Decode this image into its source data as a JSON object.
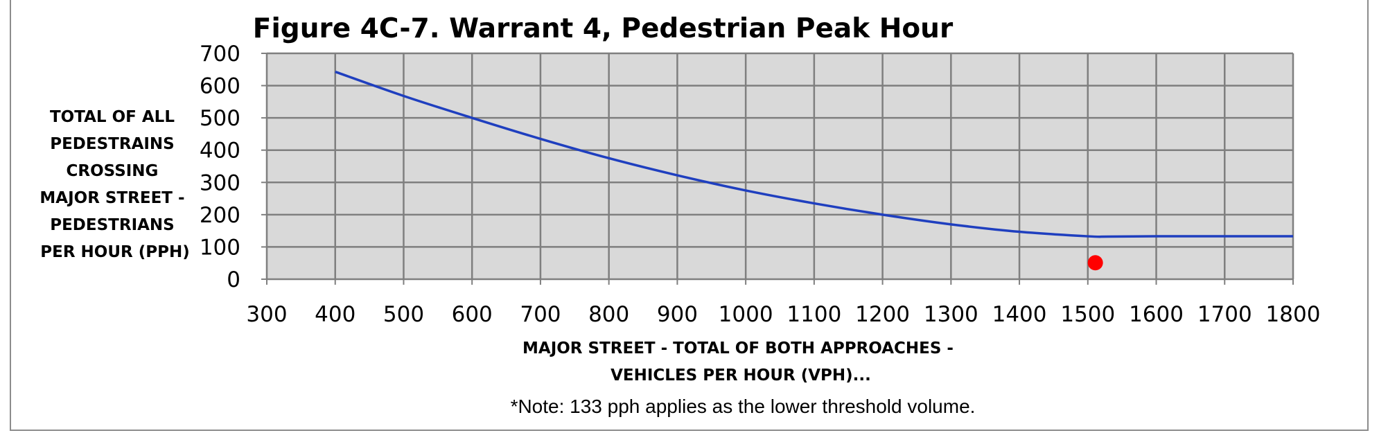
{
  "chart_data": {
    "type": "line",
    "title": "Figure 4C-7. Warrant 4, Pedestrian Peak Hour",
    "ylabel_lines": [
      "TOTAL OF ALL",
      "PEDESTRAINS",
      "CROSSING",
      "MAJOR STREET -",
      "PEDESTRIANS",
      "PER HOUR (PPH)"
    ],
    "xlabel_lines": [
      "MAJOR STREET - TOTAL OF BOTH APPROACHES -",
      "VEHICLES PER HOUR (VPH)..."
    ],
    "note": "*Note: 133 pph applies as the lower threshold volume.",
    "xlim": [
      300,
      1800
    ],
    "ylim": [
      0,
      700
    ],
    "x_ticks": [
      "300",
      "400",
      "500",
      "600",
      "700",
      "800",
      "900",
      "1000",
      "1100",
      "1200",
      "1300",
      "1400",
      "1500",
      "1600",
      "1700",
      "1800"
    ],
    "y_ticks": [
      "0",
      "100",
      "200",
      "300",
      "400",
      "500",
      "600",
      "700"
    ],
    "grid": true,
    "legend": "none",
    "plot_background": "#d9d9d9",
    "series": [
      {
        "type": "line",
        "color": "#1f3fbf",
        "points": [
          [
            400,
            643
          ],
          [
            500,
            568
          ],
          [
            600,
            500
          ],
          [
            700,
            435
          ],
          [
            800,
            375
          ],
          [
            900,
            322
          ],
          [
            1000,
            275
          ],
          [
            1100,
            235
          ],
          [
            1200,
            200
          ],
          [
            1300,
            170
          ],
          [
            1400,
            147
          ],
          [
            1500,
            133
          ],
          [
            1530,
            132
          ],
          [
            1600,
            133
          ],
          [
            1700,
            133
          ],
          [
            1800,
            133
          ]
        ]
      },
      {
        "type": "scatter",
        "color": "#ff0000",
        "points": [
          [
            1511,
            51
          ]
        ]
      }
    ]
  }
}
